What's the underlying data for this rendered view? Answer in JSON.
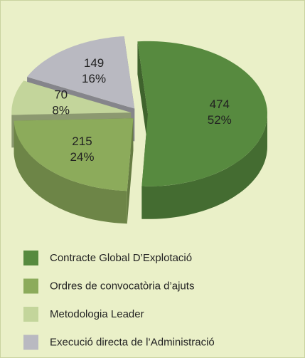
{
  "chart_data": {
    "type": "pie",
    "categories": [
      "Contracte Global D’Explotació",
      "Ordres de convocatòria d’ajuts",
      "Metodologia Leader",
      "Execució directa de l’Administració"
    ],
    "values": [
      474,
      215,
      70,
      149
    ],
    "percent_labels": [
      "52%",
      "24%",
      "8%",
      "16%"
    ],
    "colors": [
      "#578a3f",
      "#8cab5b",
      "#c3d59b",
      "#b9b9c1"
    ],
    "legend": "bottom"
  }
}
